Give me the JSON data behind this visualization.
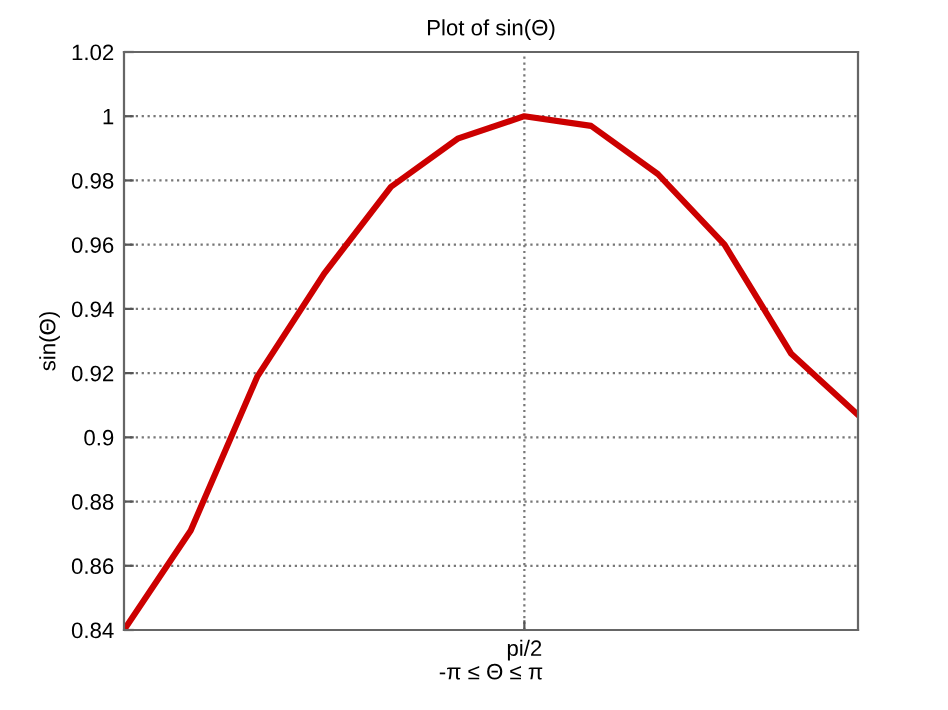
{
  "chart_data": {
    "type": "line",
    "title": "Plot of sin(Θ)",
    "xlabel": "-π ≤ Θ ≤ π",
    "ylabel": "sin(Θ)",
    "categories": [
      null,
      null,
      null,
      null,
      null,
      null,
      "pi/2",
      null,
      null,
      null,
      null,
      null
    ],
    "series": [
      {
        "color": "#cc0000",
        "values": [
          0.84,
          0.871,
          0.919,
          0.951,
          0.978,
          0.993,
          1.0,
          0.997,
          0.982,
          0.96,
          0.926,
          0.907
        ]
      }
    ],
    "ylim": [
      0.84,
      1.02
    ],
    "yticks": [
      0.84,
      0.86,
      0.88,
      0.9,
      0.92,
      0.94,
      0.96,
      0.98,
      1,
      1.02
    ],
    "grid": true,
    "line_style": "solid",
    "marker": "none",
    "legend": false
  }
}
